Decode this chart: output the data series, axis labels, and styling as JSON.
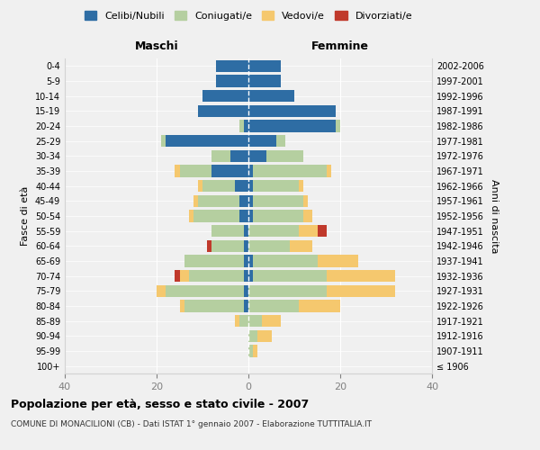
{
  "age_groups": [
    "100+",
    "95-99",
    "90-94",
    "85-89",
    "80-84",
    "75-79",
    "70-74",
    "65-69",
    "60-64",
    "55-59",
    "50-54",
    "45-49",
    "40-44",
    "35-39",
    "30-34",
    "25-29",
    "20-24",
    "15-19",
    "10-14",
    "5-9",
    "0-4"
  ],
  "birth_years": [
    "≤ 1906",
    "1907-1911",
    "1912-1916",
    "1917-1921",
    "1922-1926",
    "1927-1931",
    "1932-1936",
    "1937-1941",
    "1942-1946",
    "1947-1951",
    "1952-1956",
    "1957-1961",
    "1962-1966",
    "1967-1971",
    "1972-1976",
    "1977-1981",
    "1982-1986",
    "1987-1991",
    "1992-1996",
    "1997-2001",
    "2002-2006"
  ],
  "colors": {
    "celibe": "#2e6da4",
    "coniugato": "#b5cfa0",
    "vedovo": "#f5c86e",
    "divorziato": "#c0392b"
  },
  "males": {
    "celibe": [
      0,
      0,
      0,
      0,
      1,
      1,
      1,
      1,
      1,
      1,
      2,
      2,
      3,
      8,
      4,
      18,
      1,
      11,
      10,
      7,
      7
    ],
    "coniugato": [
      0,
      0,
      0,
      2,
      13,
      17,
      12,
      13,
      7,
      7,
      10,
      9,
      7,
      7,
      4,
      1,
      1,
      0,
      0,
      0,
      0
    ],
    "vedovo": [
      0,
      0,
      0,
      1,
      1,
      2,
      2,
      0,
      0,
      0,
      1,
      1,
      1,
      1,
      0,
      0,
      0,
      0,
      0,
      0,
      0
    ],
    "divorziato": [
      0,
      0,
      0,
      0,
      0,
      0,
      1,
      0,
      1,
      0,
      0,
      0,
      0,
      0,
      0,
      0,
      0,
      0,
      0,
      0,
      0
    ]
  },
  "females": {
    "nubile": [
      0,
      0,
      0,
      0,
      0,
      0,
      1,
      1,
      0,
      0,
      1,
      1,
      1,
      1,
      4,
      6,
      19,
      19,
      10,
      7,
      7
    ],
    "coniugata": [
      0,
      1,
      2,
      3,
      11,
      17,
      16,
      14,
      9,
      11,
      11,
      11,
      10,
      16,
      8,
      2,
      1,
      0,
      0,
      0,
      0
    ],
    "vedova": [
      0,
      1,
      3,
      4,
      9,
      15,
      15,
      9,
      5,
      4,
      2,
      1,
      1,
      1,
      0,
      0,
      0,
      0,
      0,
      0,
      0
    ],
    "divorziata": [
      0,
      0,
      0,
      0,
      0,
      0,
      0,
      0,
      0,
      2,
      0,
      0,
      0,
      0,
      0,
      0,
      0,
      0,
      0,
      0,
      0
    ]
  },
  "xlim": [
    -40,
    40
  ],
  "xticks": [
    -40,
    -20,
    0,
    20,
    40
  ],
  "xticklabels": [
    "40",
    "20",
    "0",
    "20",
    "40"
  ],
  "title": "Popolazione per età, sesso e stato civile - 2007",
  "subtitle": "COMUNE DI MONACILIONI (CB) - Dati ISTAT 1° gennaio 2007 - Elaborazione TUTTITALIA.IT",
  "ylabel_left": "Fasce di età",
  "ylabel_right": "Anni di nascita",
  "legend_labels": [
    "Celibi/Nubili",
    "Coniugati/e",
    "Vedovi/e",
    "Divorziati/e"
  ],
  "background_color": "#f0f0f0",
  "bar_height": 0.8
}
